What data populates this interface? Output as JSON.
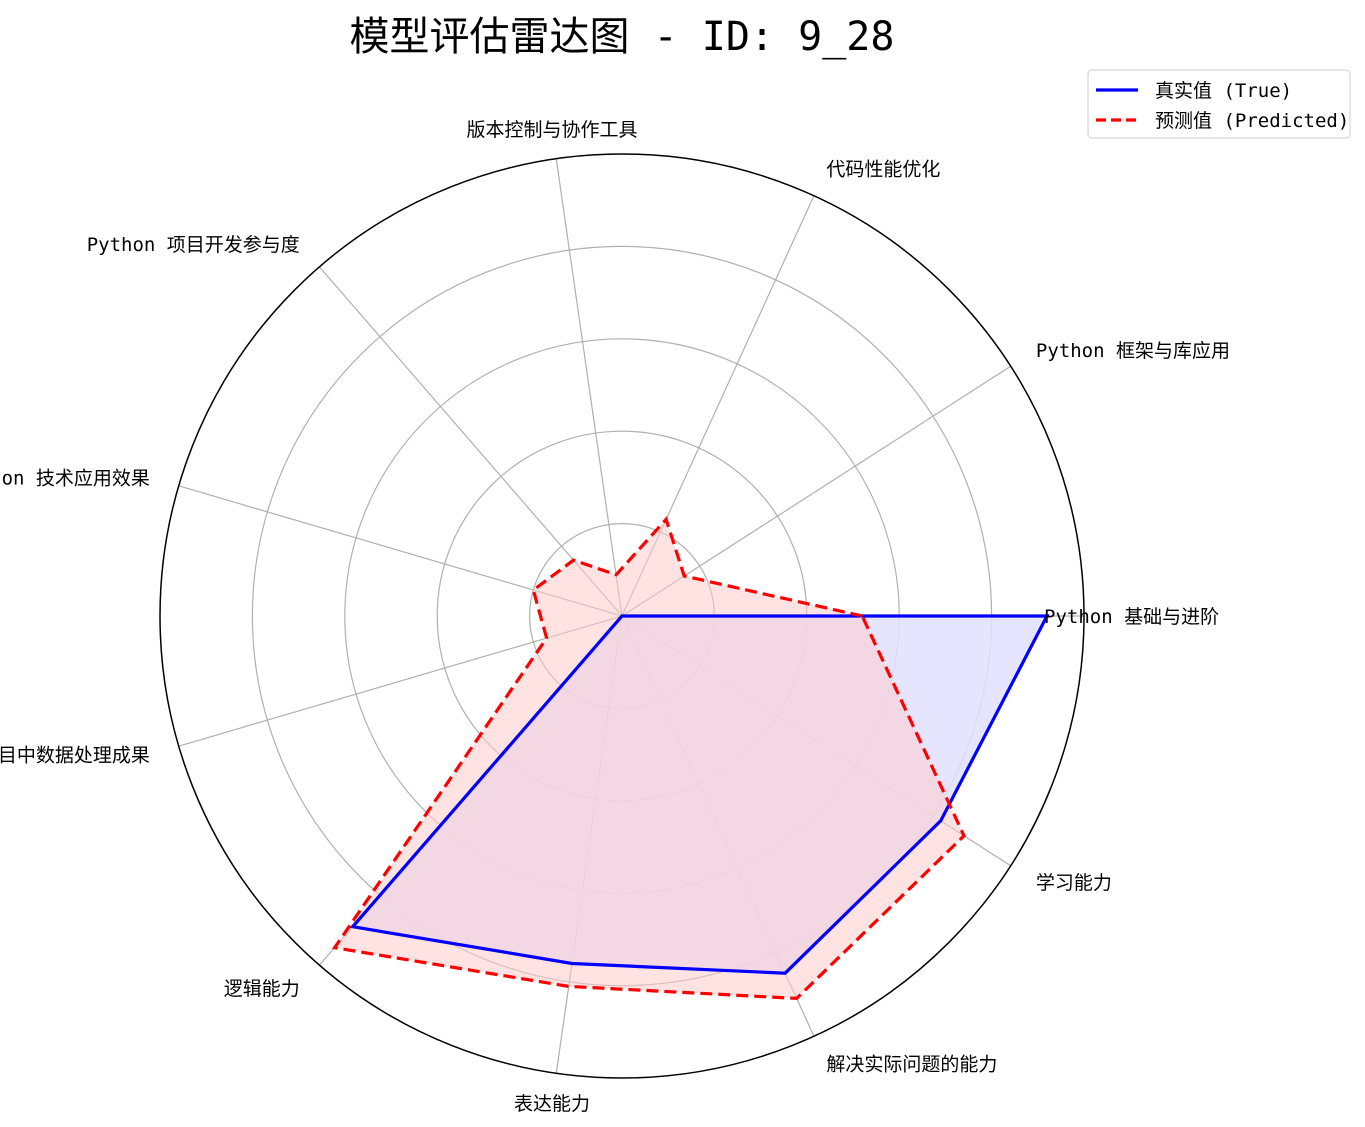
{
  "chart_data": {
    "type": "radar",
    "title": "模型评估雷达图 - ID: 9_28",
    "categories": [
      "Python 基础与进阶",
      "Python 框架与库应用",
      "代码性能优化",
      "版本控制与协作工具",
      "Python 项目开发参与度",
      "项目中 Python 技术应用效果",
      "项目中数据处理成果",
      "逻辑能力",
      "表达能力",
      "解决实际问题的能力",
      "学习能力"
    ],
    "rlim": [
      0,
      1
    ],
    "grid": true,
    "legend_position": "top-right",
    "series": [
      {
        "name": "真实值 (True)",
        "values": [
          0.92,
          0.0,
          0.0,
          0.0,
          0.0,
          0.0,
          0.0,
          0.89,
          0.76,
          0.85,
          0.82
        ],
        "color": "#0000ff",
        "fill": "#e0e0ff",
        "linestyle": "solid"
      },
      {
        "name": "预测值 (Predicted)",
        "values": [
          0.52,
          0.16,
          0.23,
          0.09,
          0.16,
          0.2,
          0.17,
          0.95,
          0.81,
          0.91,
          0.88
        ],
        "color": "#ff0000",
        "fill": "#ffcccc",
        "linestyle": "dashed"
      }
    ]
  }
}
